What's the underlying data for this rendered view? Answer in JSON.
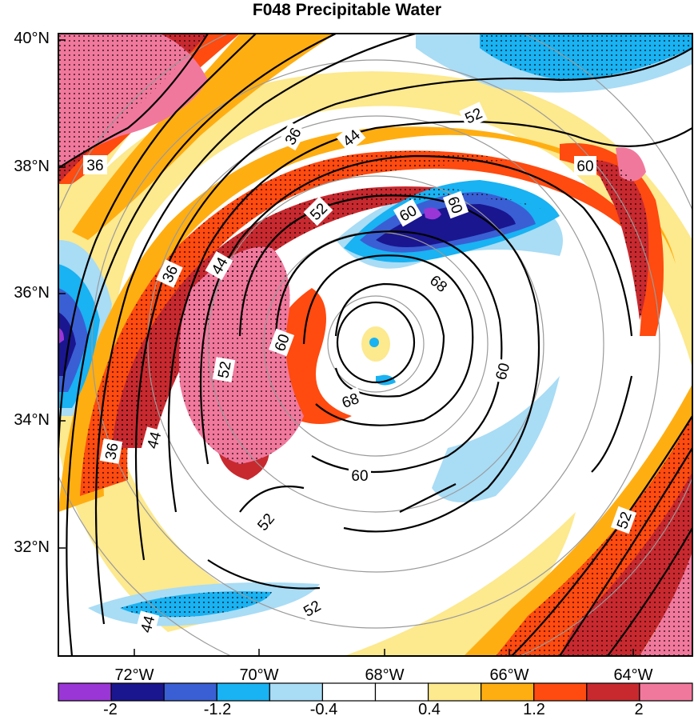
{
  "title": "F048 Precipitable Water",
  "lat_labels": [
    "40°N",
    "38°N",
    "36°N",
    "34°N",
    "32°N"
  ],
  "lon_labels": [
    "72°W",
    "70°W",
    "68°W",
    "66°W",
    "64°W"
  ],
  "colorbar": {
    "labels": [
      "-2",
      "-1.2",
      "-0.4",
      "0.4",
      "1.2",
      "2"
    ],
    "colors": [
      "#9a36d6",
      "#1a168f",
      "#3a5fd4",
      "#19b2f2",
      "#a9dcf5",
      "#ffffff",
      "#ffffff",
      "#fde98e",
      "#ffae12",
      "#ff4a10",
      "#c8292f",
      "#f1789d"
    ]
  },
  "contour_labels": [
    "36",
    "36",
    "36",
    "36",
    "44",
    "44",
    "44",
    "44",
    "52",
    "52",
    "52",
    "52",
    "52",
    "52",
    "60",
    "60",
    "60",
    "60",
    "60",
    "68",
    "68"
  ]
}
